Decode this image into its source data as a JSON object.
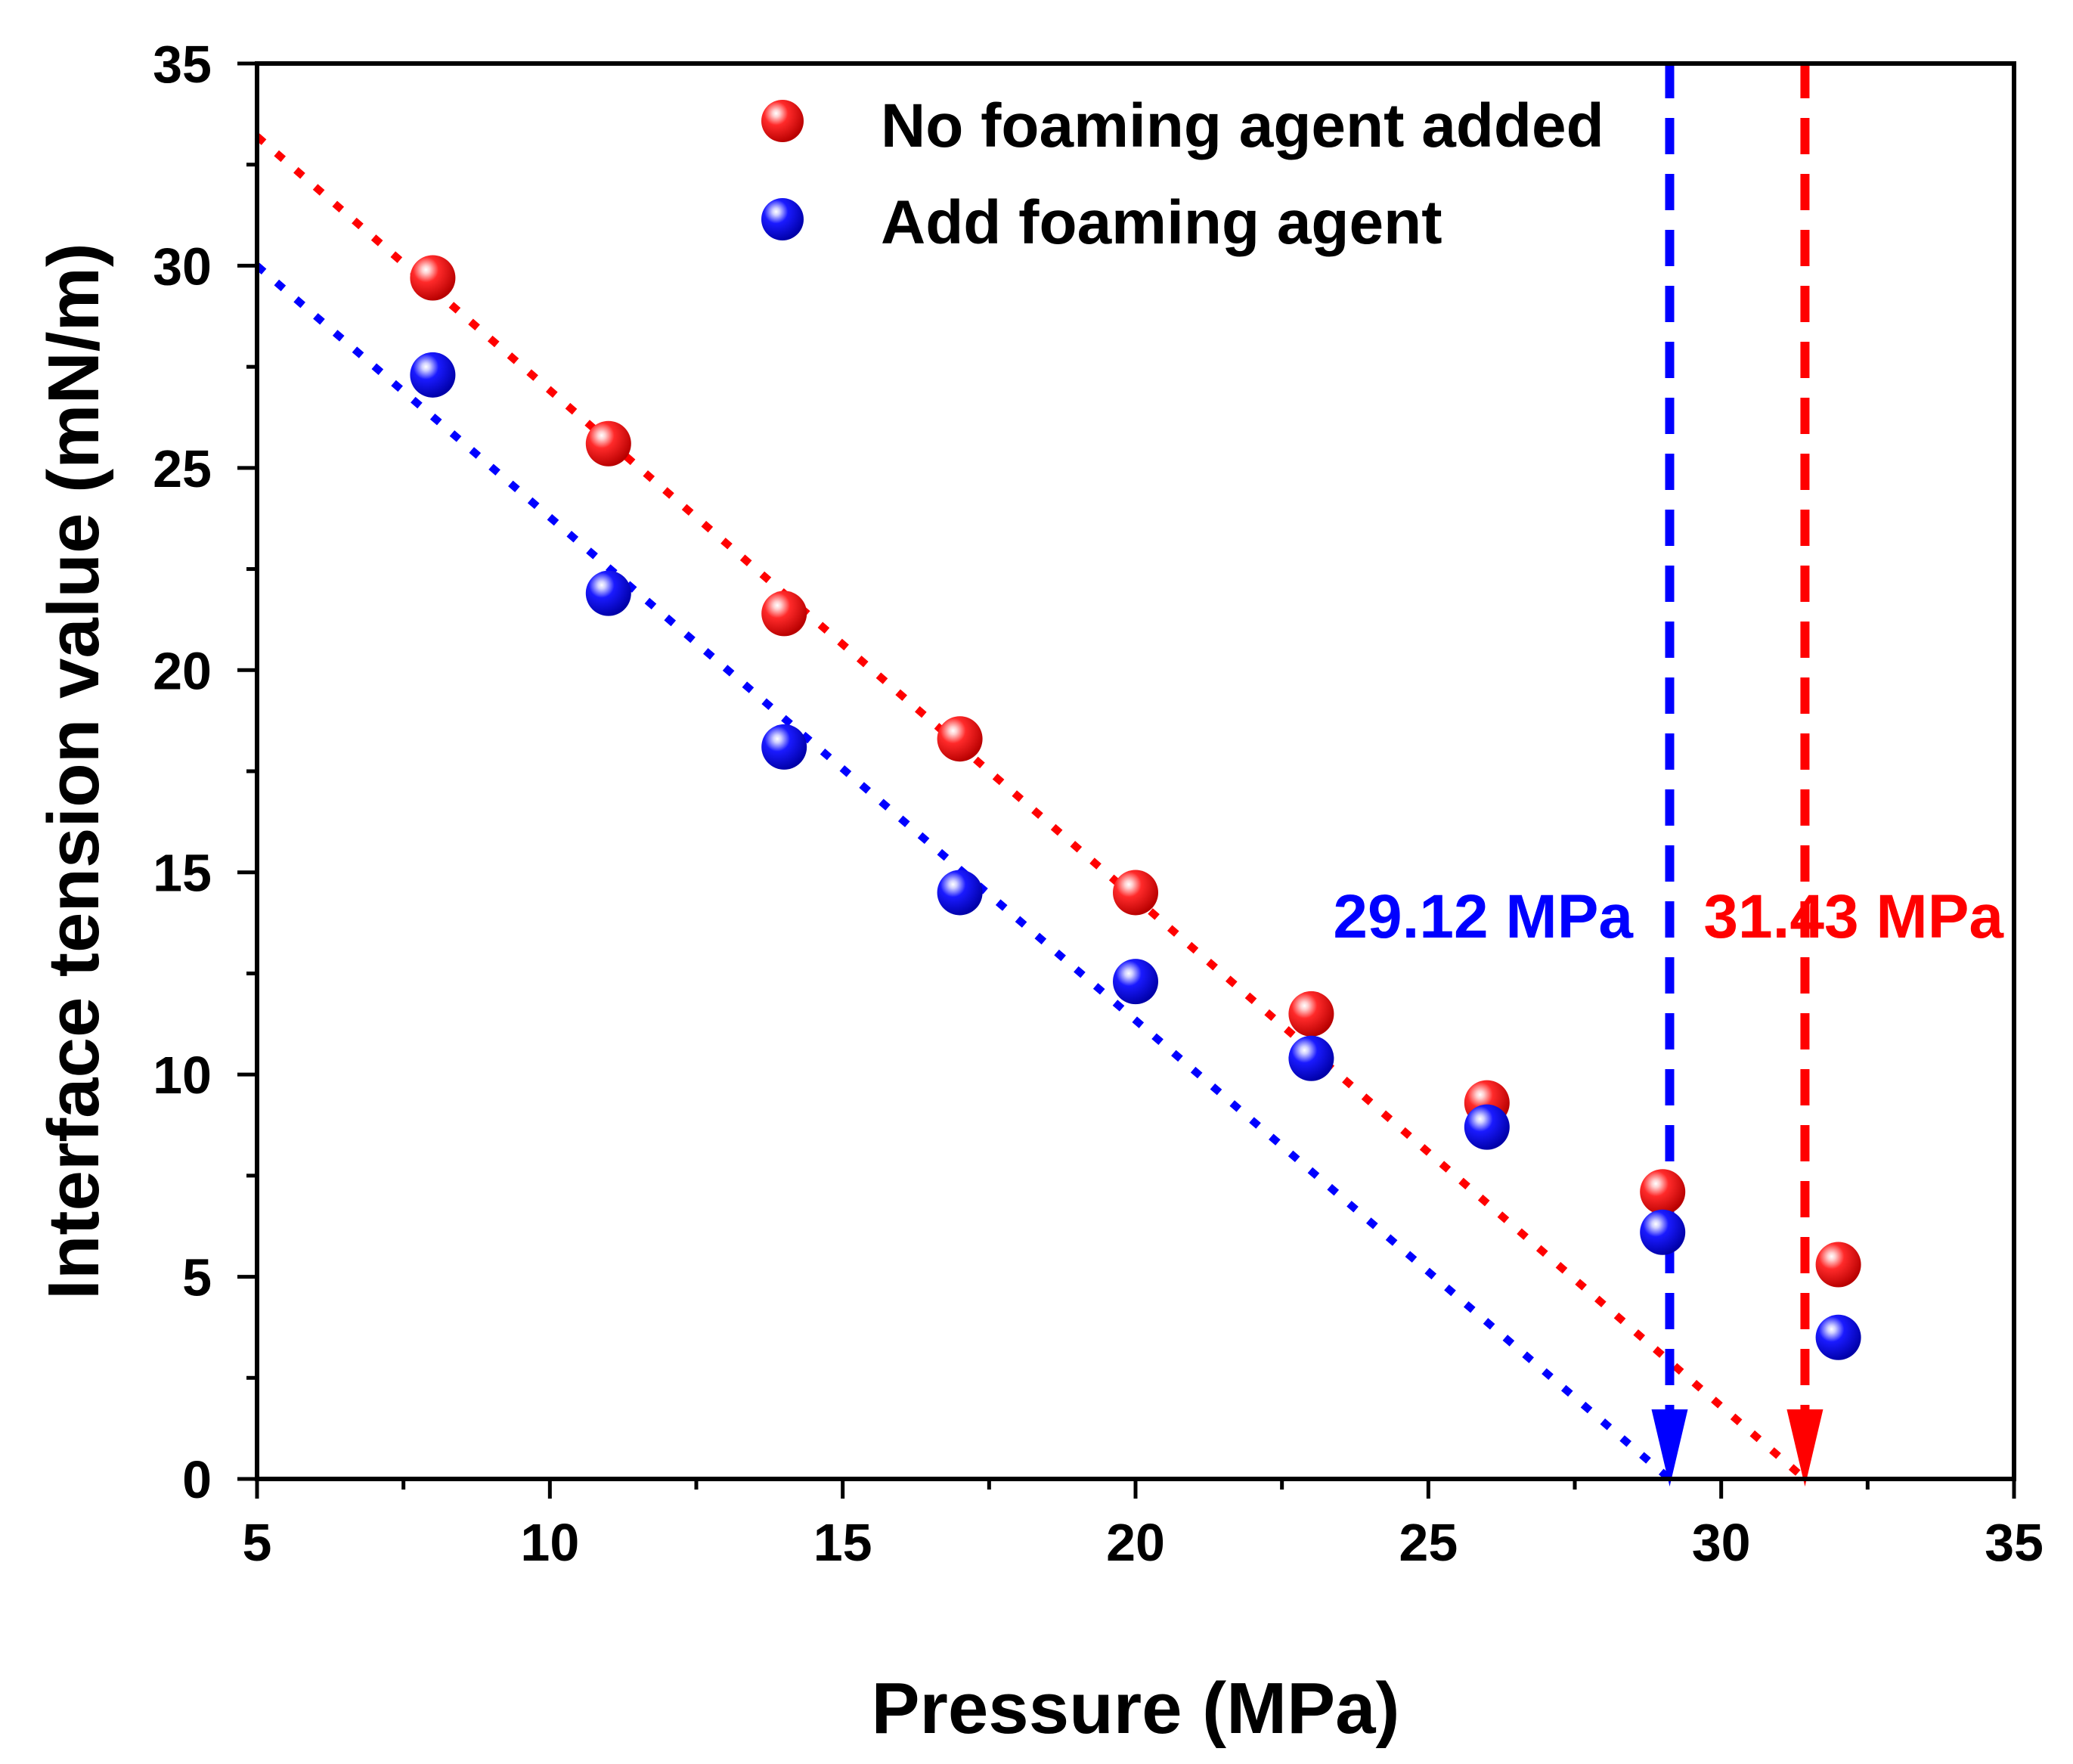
{
  "chart_data": {
    "type": "scatter",
    "xlabel": "Pressure (MPa)",
    "ylabel": "Interface tension value (mN/m)",
    "xlim": [
      5,
      35
    ],
    "ylim": [
      0,
      35
    ],
    "xticks": [
      5,
      10,
      15,
      20,
      25,
      30,
      35
    ],
    "yticks": [
      0,
      5,
      10,
      15,
      20,
      25,
      30,
      35
    ],
    "xticks_labels": [
      "5",
      "10",
      "15",
      "20",
      "25",
      "30",
      "35"
    ],
    "yticks_labels": [
      "0",
      "5",
      "10",
      "15",
      "20",
      "25",
      "30",
      "35"
    ],
    "legend_position": "top-center",
    "series": [
      {
        "name": "No foaming agent added",
        "color": "#ff0000",
        "x": [
          8,
          11,
          14,
          17,
          20,
          23,
          26,
          29,
          32
        ],
        "y": [
          29.7,
          25.6,
          21.4,
          18.3,
          14.5,
          11.5,
          9.3,
          7.1,
          5.3
        ],
        "fit_line": {
          "x": [
            5,
            31.43
          ],
          "y": [
            33.2,
            0
          ]
        }
      },
      {
        "name": "Add foaming agent",
        "color": "#0000ff",
        "x": [
          8,
          11,
          14,
          17,
          20,
          23,
          26,
          29,
          32
        ],
        "y": [
          27.3,
          21.9,
          18.1,
          14.5,
          12.3,
          10.4,
          8.7,
          6.1,
          3.5
        ],
        "fit_line": {
          "x": [
            5,
            29.12
          ],
          "y": [
            30,
            0
          ]
        }
      }
    ],
    "annotations": [
      {
        "text": "29.12 MPa",
        "x": 29.12,
        "color": "#0000ff"
      },
      {
        "text": "31.43 MPa",
        "x": 31.43,
        "color": "#ff0000"
      }
    ]
  }
}
